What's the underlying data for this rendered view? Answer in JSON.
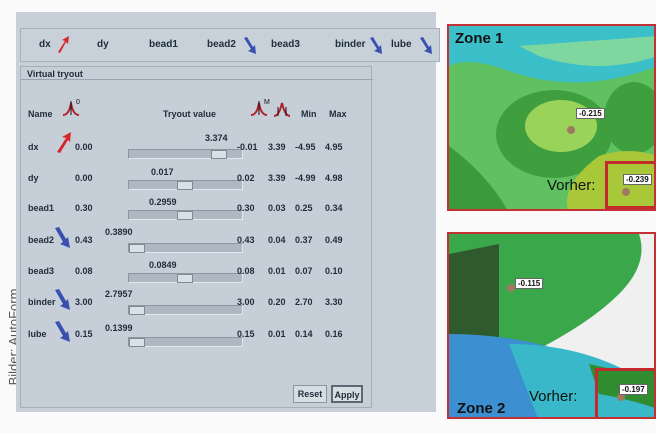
{
  "credit": "Bilder: AutoForm",
  "topbar": {
    "items": [
      "dx",
      "dy",
      "bead1",
      "bead2",
      "bead3",
      "binder",
      "lube"
    ]
  },
  "panel": {
    "title": "Virtual tryout",
    "columns": {
      "name": "Name",
      "tryout_value": "Tryout value",
      "min": "Min",
      "max": "Max"
    },
    "rows": [
      {
        "name": "dx",
        "mean": "0.00",
        "value": "3.374",
        "c1": "-0.01",
        "c2": "3.39",
        "min": "-4.95",
        "max": "4.95",
        "level": 0.86
      },
      {
        "name": "dy",
        "mean": "0.00",
        "value": "0.017",
        "c1": "0.02",
        "c2": "3.39",
        "min": "-4.99",
        "max": "4.98",
        "level": 0.5
      },
      {
        "name": "bead1",
        "mean": "0.30",
        "value": "0.2959",
        "c1": "0.30",
        "c2": "0.03",
        "min": "0.25",
        "max": "0.34",
        "level": 0.5
      },
      {
        "name": "bead2",
        "mean": "0.43",
        "value": "0.3890",
        "c1": "0.43",
        "c2": "0.04",
        "min": "0.37",
        "max": "0.49",
        "level": 0.0
      },
      {
        "name": "bead3",
        "mean": "0.08",
        "value": "0.0849",
        "c1": "0.08",
        "c2": "0.01",
        "min": "0.07",
        "max": "0.10",
        "level": 0.5
      },
      {
        "name": "binder",
        "mean": "3.00",
        "value": "2.7957",
        "c1": "3.00",
        "c2": "0.20",
        "min": "2.70",
        "max": "3.30",
        "level": 0.0
      },
      {
        "name": "lube",
        "mean": "0.15",
        "value": "0.1399",
        "c1": "0.15",
        "c2": "0.01",
        "min": "0.14",
        "max": "0.16",
        "level": 0.0
      }
    ],
    "reset_label": "Reset",
    "apply_label": "Apply"
  },
  "zone1": {
    "label": "Zone 1",
    "tag_a": "-0.215",
    "tag_b": "-0.239",
    "vorher": "Vorher:"
  },
  "zone2": {
    "label": "Zone 2",
    "tag_a": "-0.115",
    "tag_b": "-0.197",
    "vorher": "Vorher:"
  },
  "colors": {
    "red_arrow": "#d6262b",
    "blue_arrow": "#3b4fb0",
    "zone_border": "#c53035"
  }
}
